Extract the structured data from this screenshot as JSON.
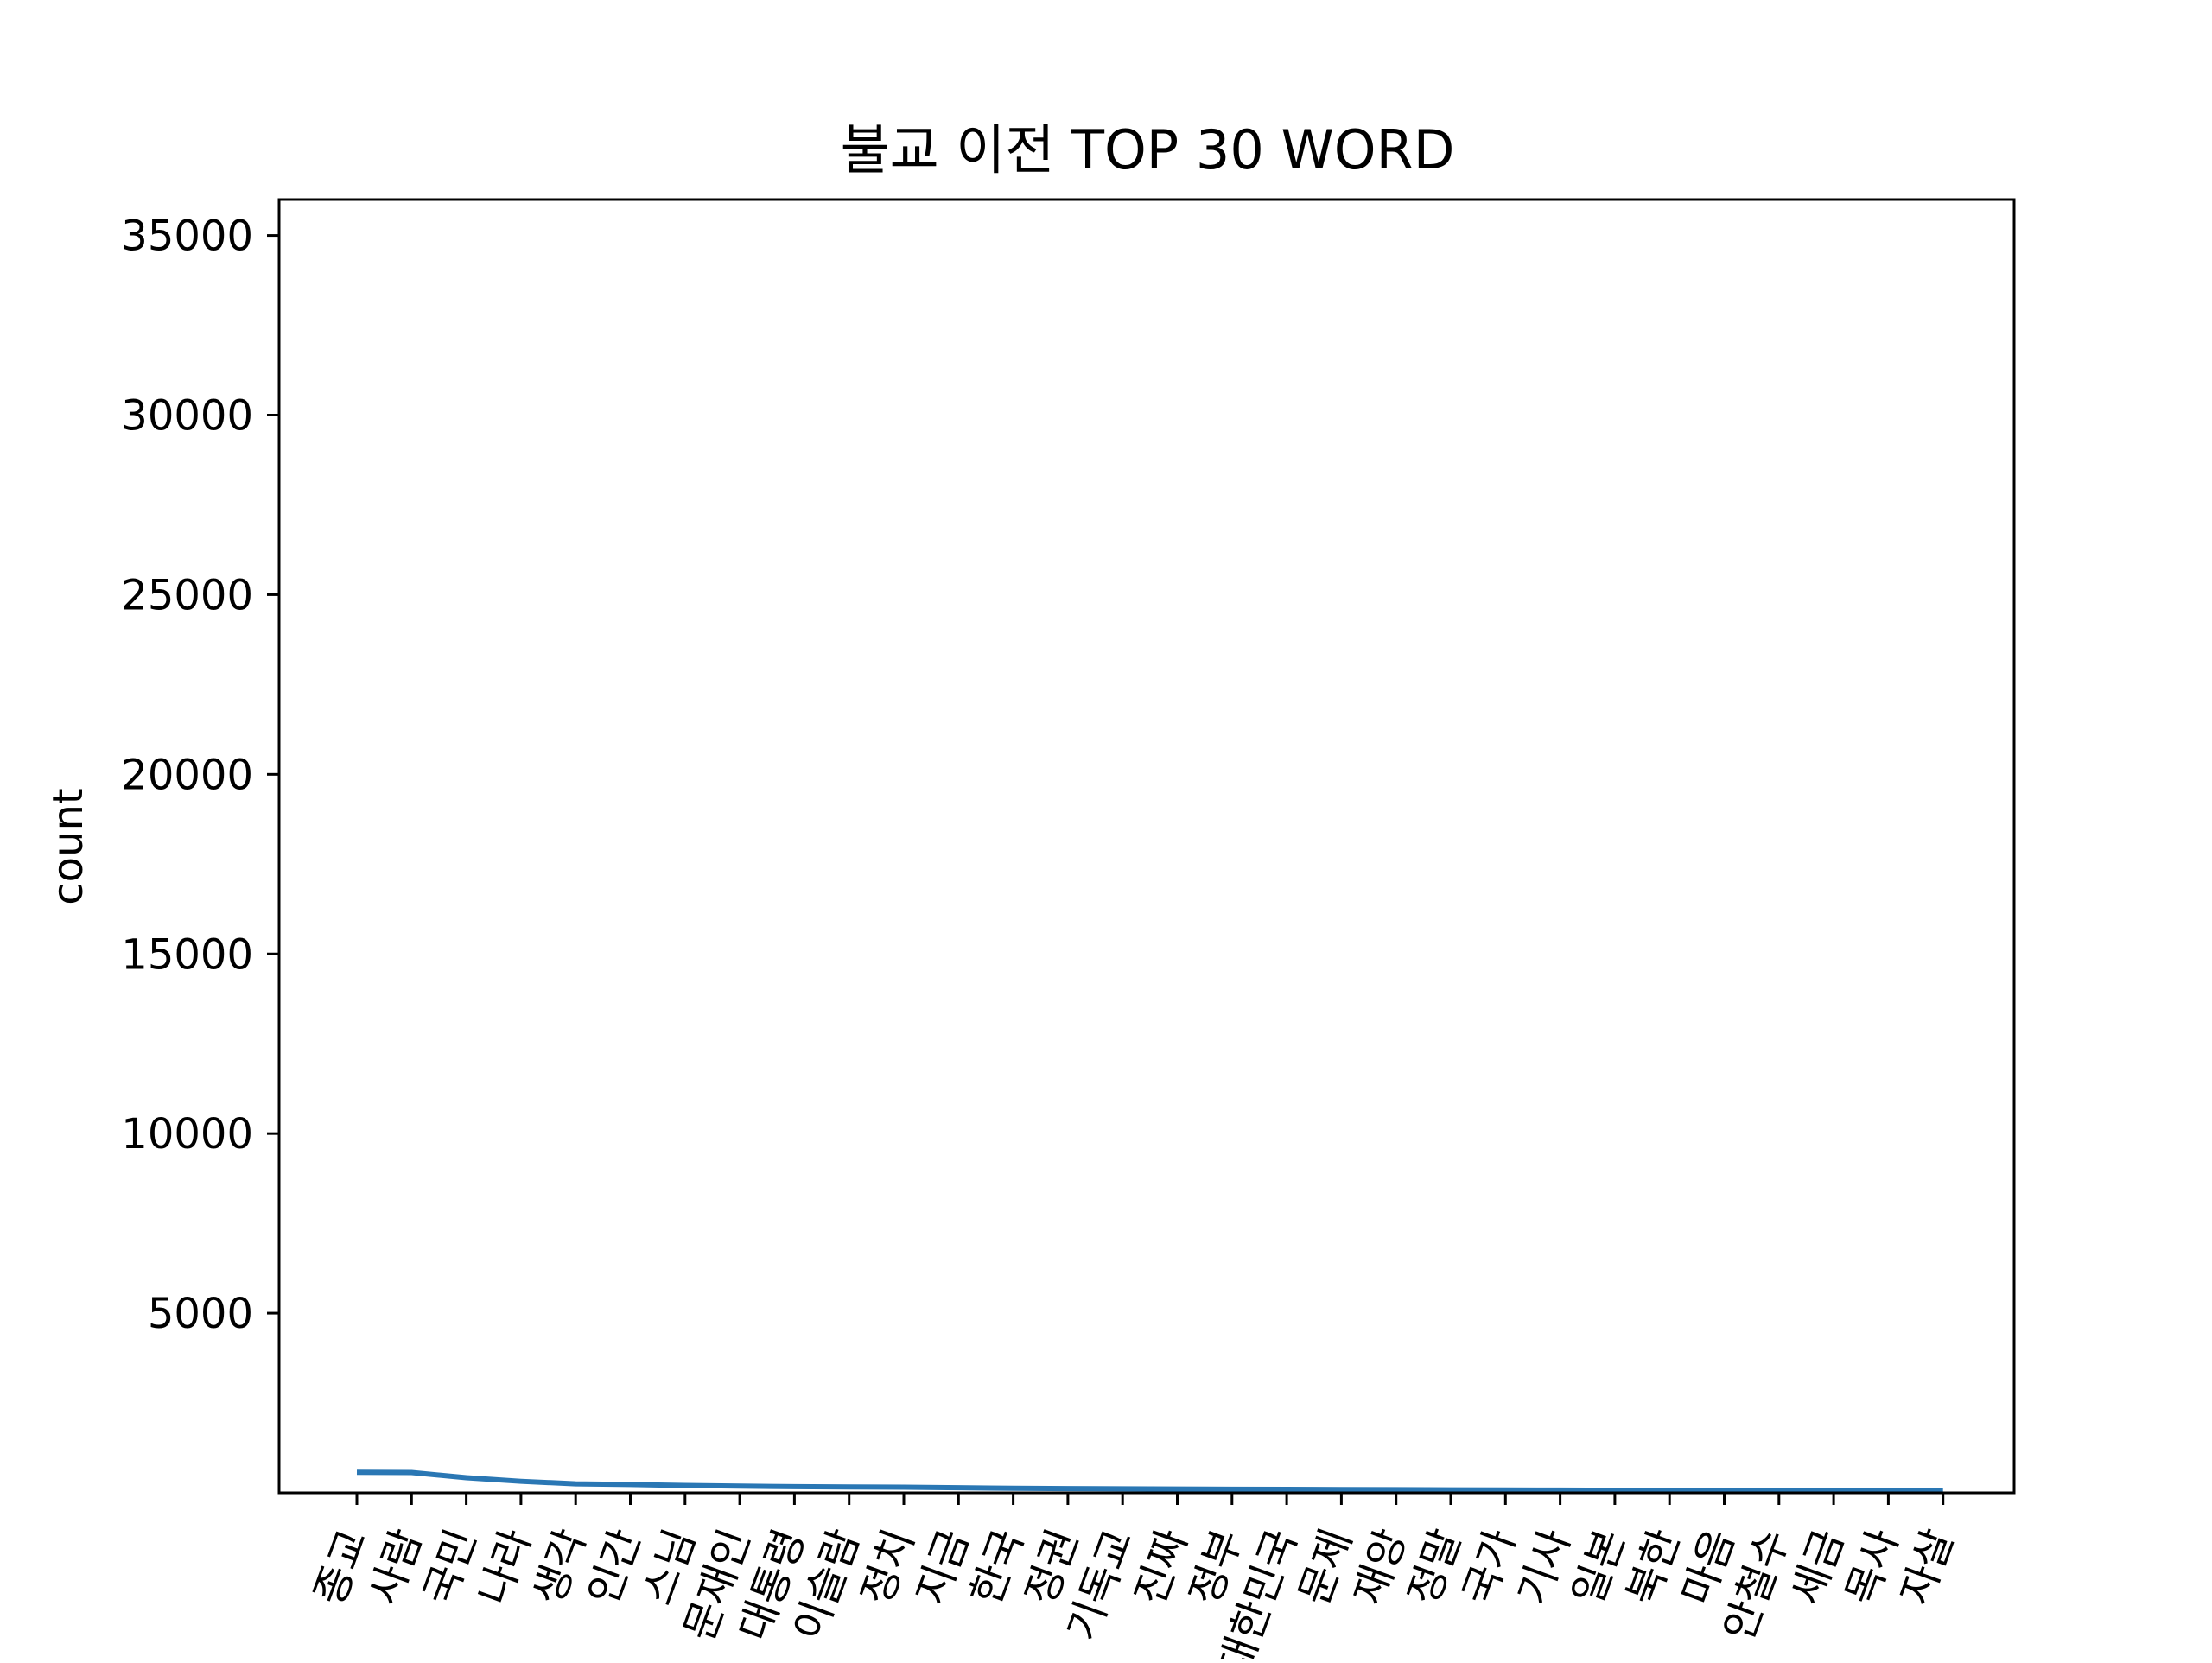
{
  "chart_data": {
    "type": "line",
    "title": "불교 이전 TOP 30 WORD",
    "xlabel": "",
    "ylabel": "count",
    "categories": [
      "종교",
      "사람",
      "국민",
      "나라",
      "생각",
      "인간",
      "스님",
      "문재인",
      "대통령",
      "이슬람",
      "정치",
      "지금",
      "한국",
      "정권",
      "기독교",
      "진짜",
      "정부",
      "대한민국",
      "문제",
      "재앙",
      "정말",
      "국가",
      "기사",
      "일본",
      "북한",
      "마음",
      "안철수",
      "세금",
      "목사",
      "자살"
    ],
    "values": [
      570,
      565,
      420,
      320,
      250,
      230,
      205,
      185,
      172,
      162,
      155,
      140,
      125,
      118,
      112,
      106,
      100,
      95,
      90,
      86,
      82,
      78,
      74,
      70,
      67,
      64,
      61,
      58,
      55,
      52
    ],
    "yticks": [
      5000,
      10000,
      15000,
      20000,
      25000,
      30000,
      35000
    ],
    "ylim": [
      0,
      36000
    ],
    "grid": false,
    "colors": {
      "line": "#2a77b4",
      "axes": "#000000",
      "background": "#ffffff"
    }
  }
}
